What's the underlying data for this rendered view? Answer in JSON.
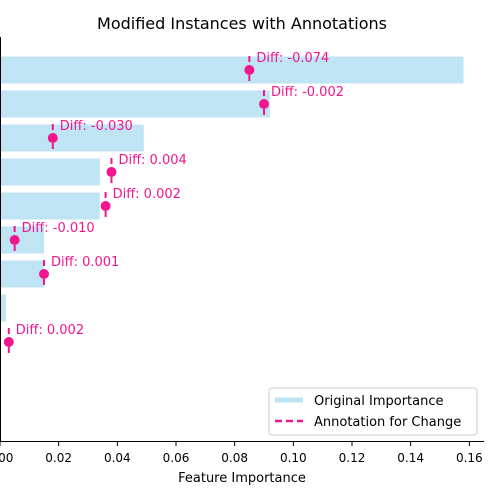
{
  "chart_data": {
    "type": "bar",
    "orientation": "horizontal",
    "title": "Modified Instances with Annotations",
    "xlabel": "Feature Importance",
    "ylabel": "",
    "xlim": [
      0.0,
      0.165
    ],
    "xticks": [
      0.0,
      0.02,
      0.04,
      0.06,
      0.08,
      0.1,
      0.12,
      0.14,
      0.16
    ],
    "xtick_labels": [
      "0.00",
      "0.02",
      "0.04",
      "0.06",
      "0.08",
      "0.10",
      "0.12",
      "0.14",
      "0.16"
    ],
    "grid": false,
    "legend_position": "lower-right",
    "series": [
      {
        "name": "Original Importance",
        "kind": "bar",
        "color": "#bfe4f4",
        "values": [
          0.158,
          0.092,
          0.049,
          0.034,
          0.034,
          0.015,
          0.015,
          0.002,
          0.0,
          0.0
        ]
      },
      {
        "name": "Annotation for Change",
        "kind": "marker",
        "color": "#f2168e",
        "values": [
          0.085,
          0.09,
          0.018,
          0.038,
          0.036,
          0.005,
          0.015,
          null,
          0.003,
          null
        ],
        "labels": [
          "Diff: -0.074",
          "Diff: -0.002",
          "Diff: -0.030",
          "Diff: 0.004",
          "Diff: 0.002",
          "Diff: -0.010",
          "Diff: 0.001",
          null,
          "Diff: 0.002",
          null
        ]
      }
    ]
  }
}
